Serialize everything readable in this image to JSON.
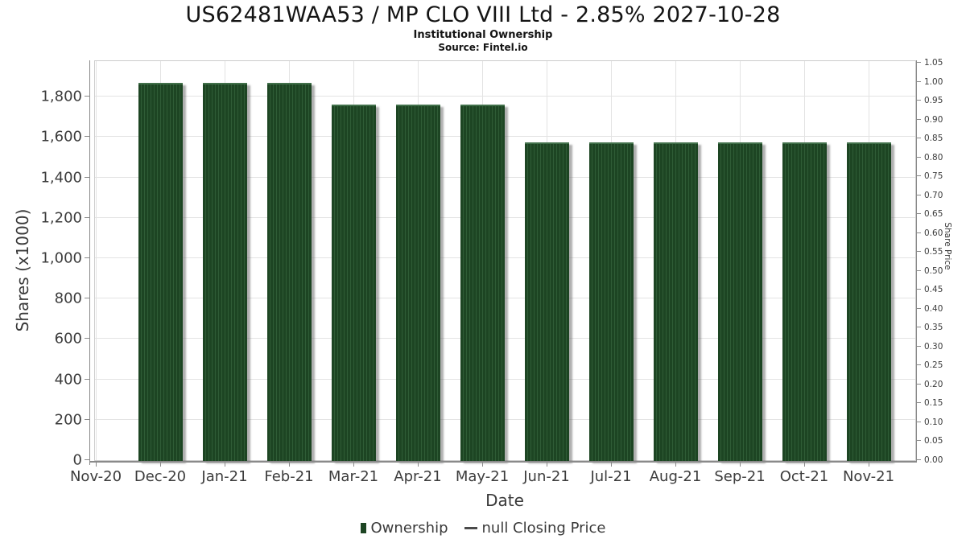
{
  "header": {
    "title": "US62481WAA53 / MP CLO VIII Ltd - 2.85% 2027-10-28",
    "subtitle": "Institutional Ownership",
    "source": "Source: Fintel.io"
  },
  "chart_data": {
    "type": "bar",
    "title": "US62481WAA53 / MP CLO VIII Ltd - 2.85% 2027-10-28",
    "subtitle": "Institutional Ownership",
    "source": "Source: Fintel.io",
    "categories": [
      "Nov-20",
      "Dec-20",
      "Jan-21",
      "Feb-21",
      "Mar-21",
      "Apr-21",
      "May-21",
      "Jun-21",
      "Jul-21",
      "Aug-21",
      "Sep-21",
      "Oct-21",
      "Nov-21"
    ],
    "series": [
      {
        "name": "Ownership",
        "values": [
          null,
          1865,
          1865,
          1865,
          1755,
          1755,
          1755,
          1570,
          1570,
          1570,
          1570,
          1570,
          1570
        ]
      }
    ],
    "xlabel": "Date",
    "left_axis": {
      "label": "Shares (x1000)",
      "tick_labels": [
        "0",
        "200",
        "400",
        "600",
        "800",
        "1,000",
        "1,200",
        "1,400",
        "1,600",
        "1,800"
      ],
      "tick_values": [
        0,
        200,
        400,
        600,
        800,
        1000,
        1200,
        1400,
        1600,
        1800
      ],
      "range": [
        0,
        1980
      ]
    },
    "right_axis": {
      "label": "Share Price",
      "tick_labels": [
        "0.00",
        "0.05",
        "0.10",
        "0.15",
        "0.20",
        "0.25",
        "0.30",
        "0.35",
        "0.40",
        "0.45",
        "0.50",
        "0.55",
        "0.60",
        "0.65",
        "0.70",
        "0.75",
        "0.80",
        "0.85",
        "0.90",
        "0.95",
        "1.00",
        "1.05"
      ],
      "range": [
        0.0,
        1.05
      ]
    },
    "legend": [
      {
        "label": "Ownership",
        "marker": "square",
        "color": "#1d4523"
      },
      {
        "label": "null Closing Price",
        "marker": "line",
        "color": "#4a4a4a"
      }
    ],
    "grid": true,
    "legend_position": "bottom",
    "colors": {
      "bar_fill": "#1d4523",
      "bar_stripe": "#2f5c36",
      "gridline": "#e3e3e3",
      "plot_border": "#cccccc",
      "axis_spine": "#8a8a8a",
      "tick_text": "#3c3c3c",
      "title_text": "#141414"
    }
  }
}
